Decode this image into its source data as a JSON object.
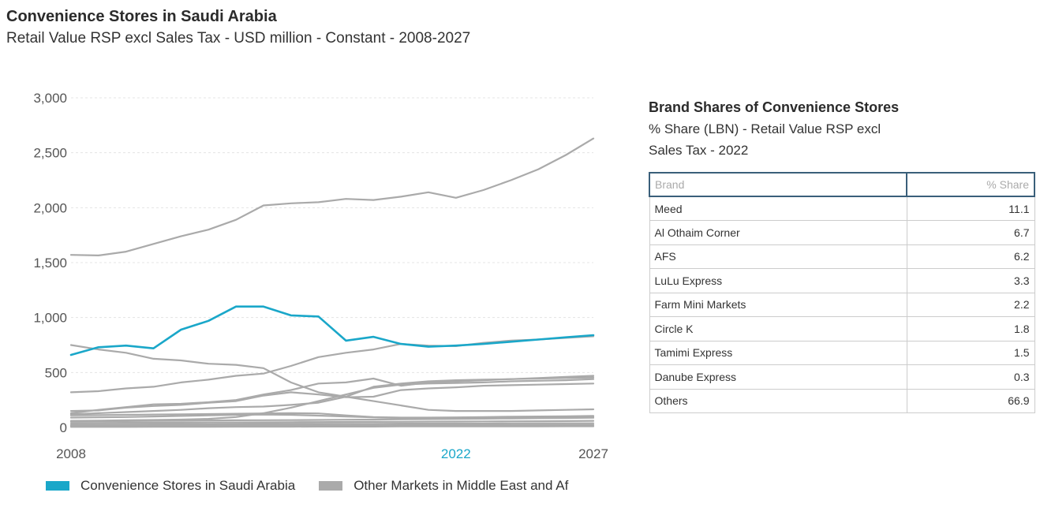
{
  "header": {
    "title": "Convenience Stores in Saudi Arabia",
    "subtitle": "Retail Value RSP excl Sales Tax - USD million - Constant - 2008-2027"
  },
  "colors": {
    "highlight": "#1aa7c9",
    "other": "#aaaaaa",
    "grid": "#e4e4e4",
    "highlight_year": "#1aa7c9"
  },
  "chart_data": {
    "type": "line",
    "title": "Convenience Stores in Saudi Arabia",
    "subtitle": "Retail Value RSP excl Sales Tax - USD million - Constant - 2008-2027",
    "x": [
      2008,
      2009,
      2010,
      2011,
      2012,
      2013,
      2014,
      2015,
      2016,
      2017,
      2018,
      2019,
      2020,
      2021,
      2022,
      2023,
      2024,
      2025,
      2026,
      2027
    ],
    "x_tick_labels": [
      "2008",
      "2022",
      "2027"
    ],
    "highlight_x": "2022",
    "y_ticks": [
      "0",
      "500",
      "1,000",
      "1,500",
      "2,000",
      "2,500",
      "3,000"
    ],
    "ylim": [
      0,
      3000
    ],
    "grid": "horizontal dashed",
    "legend_position": "bottom",
    "legend": [
      "Convenience Stores in Saudi Arabia",
      "Other Markets in Middle East and Af"
    ],
    "series": [
      {
        "name": "Convenience Stores in Saudi Arabia",
        "highlight": true,
        "values": [
          660,
          730,
          745,
          720,
          890,
          970,
          1100,
          1100,
          1020,
          1010,
          790,
          825,
          760,
          735,
          745,
          760,
          780,
          800,
          820,
          840
        ]
      },
      {
        "legend": "Other Markets in Middle East and Af",
        "values": [
          1570,
          1565,
          1600,
          1670,
          1740,
          1800,
          1890,
          2020,
          2040,
          2050,
          2080,
          2070,
          2100,
          2140,
          2090,
          2160,
          2250,
          2350,
          2480,
          2630
        ]
      },
      {
        "legend": "Other Markets in Middle East and Af",
        "values": [
          750,
          710,
          680,
          625,
          610,
          580,
          570,
          540,
          410,
          320,
          280,
          240,
          200,
          160,
          150,
          150,
          150,
          155,
          160,
          165
        ]
      },
      {
        "legend": "Other Markets in Middle East and Af",
        "values": [
          320,
          330,
          355,
          370,
          410,
          435,
          470,
          490,
          560,
          640,
          680,
          710,
          760,
          745,
          740,
          770,
          790,
          800,
          815,
          830
        ]
      },
      {
        "legend": "Other Markets in Middle East and Af",
        "values": [
          130,
          160,
          185,
          210,
          215,
          230,
          250,
          300,
          340,
          400,
          410,
          445,
          380,
          410,
          420,
          430,
          440,
          450,
          460,
          470
        ]
      },
      {
        "legend": "Other Markets in Middle East and Af",
        "values": [
          150,
          155,
          180,
          195,
          205,
          225,
          240,
          290,
          320,
          300,
          275,
          280,
          340,
          355,
          365,
          380,
          385,
          390,
          395,
          400
        ]
      },
      {
        "legend": "Other Markets in Middle East and Af",
        "values": [
          120,
          130,
          140,
          150,
          160,
          175,
          185,
          190,
          205,
          225,
          280,
          370,
          400,
          420,
          430,
          435,
          440,
          445,
          450,
          455
        ]
      },
      {
        "legend": "Other Markets in Middle East and Af",
        "values": [
          60,
          62,
          65,
          68,
          72,
          78,
          95,
          130,
          180,
          240,
          300,
          360,
          390,
          400,
          405,
          410,
          420,
          425,
          430,
          440
        ]
      },
      {
        "legend": "Other Markets in Middle East and Af",
        "values": [
          110,
          112,
          115,
          118,
          120,
          122,
          125,
          128,
          130,
          128,
          110,
          95,
          90,
          90,
          92,
          95,
          98,
          100,
          102,
          105
        ]
      },
      {
        "legend": "Other Markets in Middle East and Af",
        "values": [
          90,
          92,
          95,
          100,
          105,
          110,
          115,
          118,
          115,
          108,
          100,
          92,
          85,
          80,
          82,
          85,
          88,
          90,
          92,
          95
        ]
      },
      {
        "legend": "Other Markets in Middle East and Af",
        "values": [
          55,
          57,
          58,
          60,
          62,
          64,
          65,
          66,
          67,
          68,
          70,
          72,
          74,
          76,
          78,
          80,
          82,
          84,
          86,
          88
        ]
      },
      {
        "legend": "Other Markets in Middle East and Af",
        "values": [
          40,
          41,
          42,
          43,
          44,
          45,
          46,
          47,
          48,
          49,
          50,
          51,
          52,
          53,
          54,
          55,
          56,
          57,
          58,
          60
        ]
      },
      {
        "legend": "Other Markets in Middle East and Af",
        "values": [
          25,
          26,
          27,
          28,
          29,
          30,
          31,
          32,
          33,
          33,
          34,
          34,
          35,
          35,
          36,
          36,
          37,
          37,
          38,
          38
        ]
      },
      {
        "legend": "Other Markets in Middle East and Af",
        "values": [
          15,
          15,
          16,
          16,
          17,
          17,
          18,
          18,
          19,
          19,
          20,
          20,
          21,
          21,
          22,
          22,
          23,
          23,
          24,
          24
        ]
      },
      {
        "legend": "Other Markets in Middle East and Af",
        "values": [
          5,
          5,
          5,
          6,
          6,
          6,
          7,
          7,
          7,
          8,
          8,
          8,
          9,
          9,
          9,
          10,
          10,
          10,
          11,
          11
        ]
      }
    ]
  },
  "table": {
    "title": "Brand Shares of Convenience Stores",
    "subtitle": "% Share (LBN) - Retail Value RSP excl Sales Tax - 2022",
    "columns": [
      "Brand",
      "% Share"
    ],
    "rows": [
      [
        "Meed",
        "11.1"
      ],
      [
        "Al Othaim Corner",
        "6.7"
      ],
      [
        "AFS",
        "6.2"
      ],
      [
        "LuLu Express",
        "3.3"
      ],
      [
        "Farm Mini Markets",
        "2.2"
      ],
      [
        "Circle K",
        "1.8"
      ],
      [
        "Tamimi Express",
        "1.5"
      ],
      [
        "Danube Express",
        "0.3"
      ],
      [
        "Others",
        "66.9"
      ]
    ]
  }
}
